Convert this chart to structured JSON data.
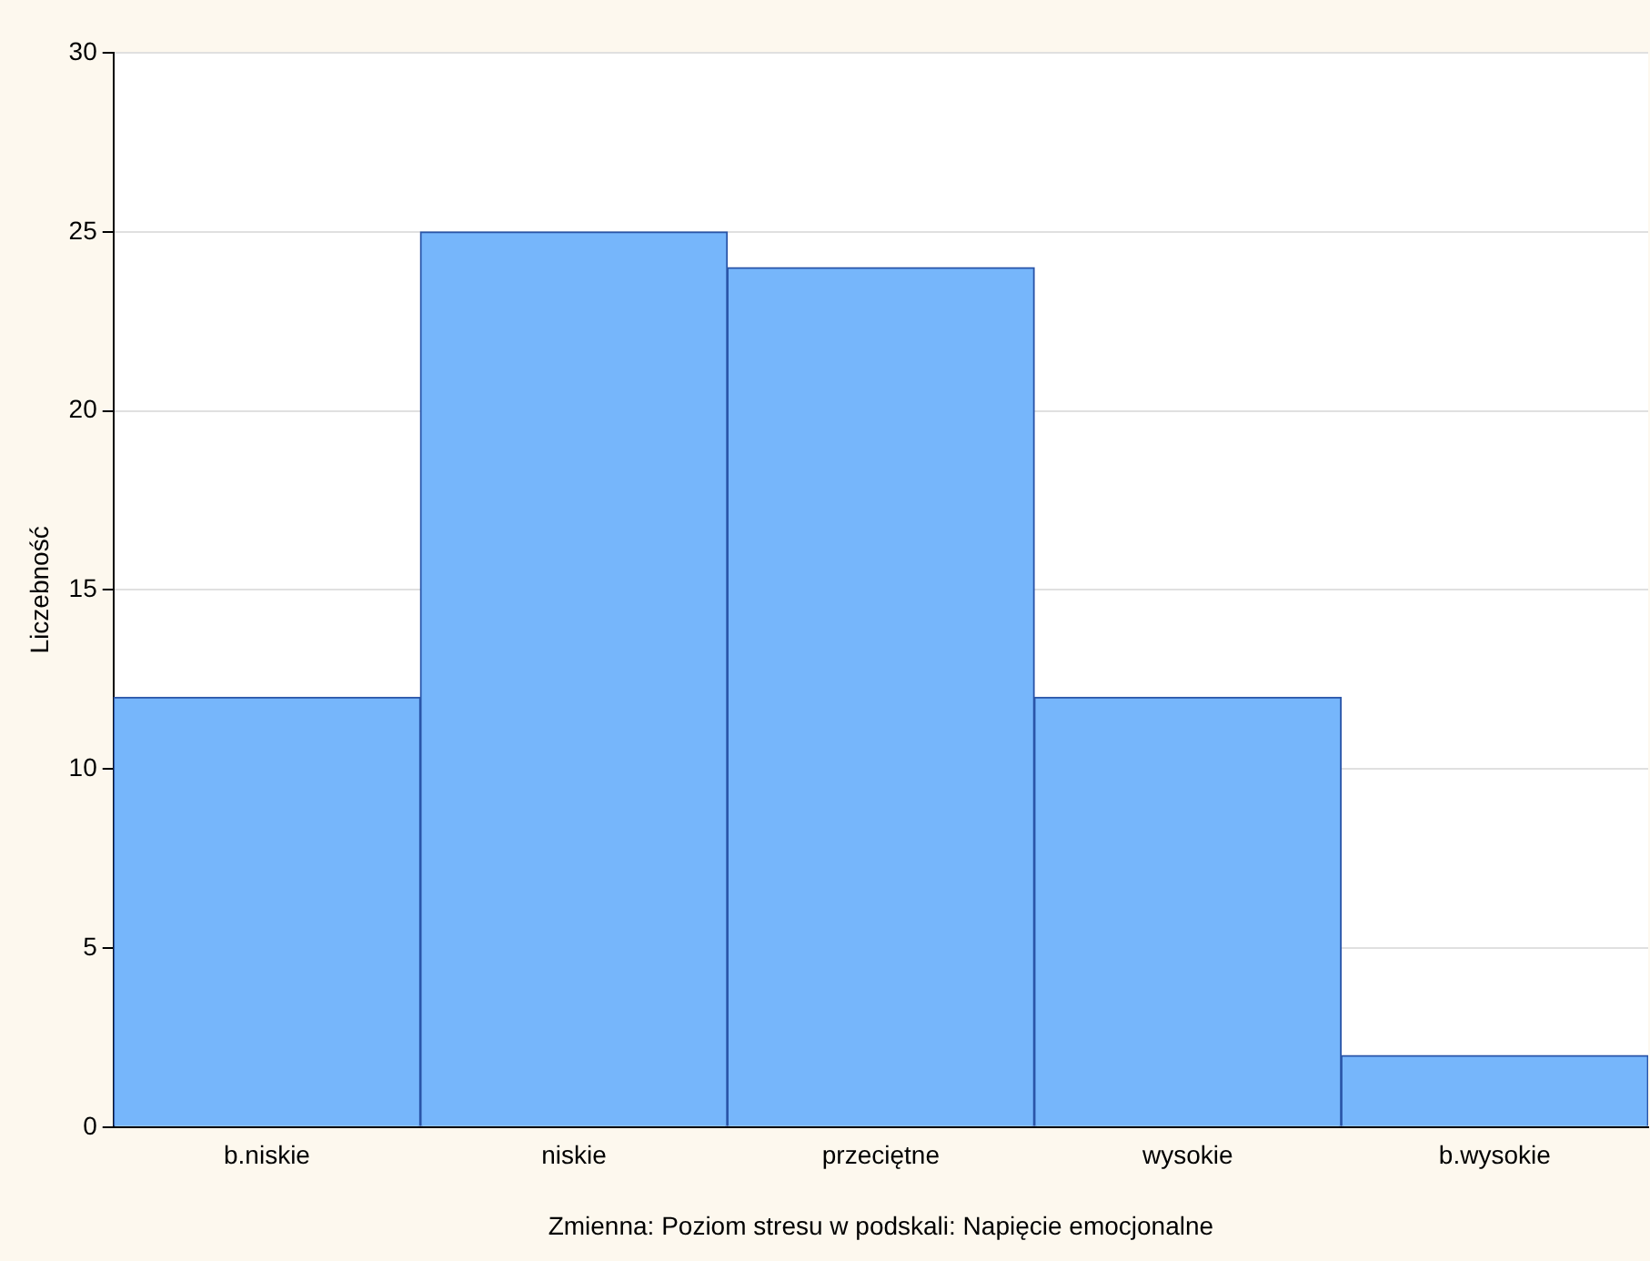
{
  "chart_data": {
    "type": "bar",
    "xlabel": "Zmienna: Poziom stresu w podskali: Napięcie emocjonalne",
    "ylabel": "Liczebność",
    "categories": [
      "b.niskie",
      "niskie",
      "przeciętne",
      "wysokie",
      "b.wysokie"
    ],
    "values": [
      12,
      25,
      24,
      12,
      2
    ],
    "color": "#76b6fb",
    "ylim": [
      0,
      30
    ],
    "yticks": [
      0,
      5,
      10,
      15,
      20,
      25,
      30
    ],
    "grid": "y",
    "legend": false
  }
}
